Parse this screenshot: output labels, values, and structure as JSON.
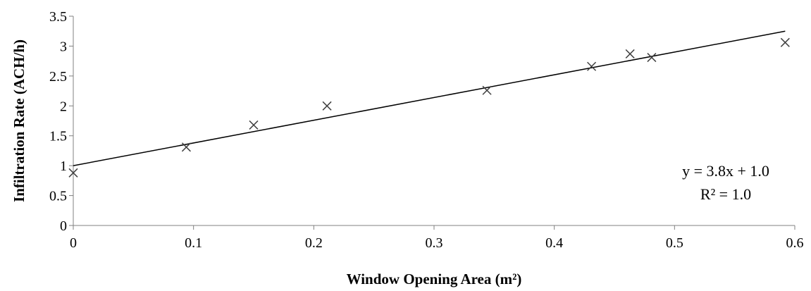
{
  "chart_data": {
    "type": "scatter",
    "title": "",
    "xlabel": "Window Opening Area (m²)",
    "ylabel": "Infiltration Rate (ACH/h)",
    "xlim": [
      0,
      0.6
    ],
    "ylim": [
      0,
      3.5
    ],
    "x_ticks": [
      "0",
      "0.1",
      "0.2",
      "0.3",
      "0.4",
      "0.5",
      "0.6"
    ],
    "y_ticks": [
      "0",
      "0.5",
      "1",
      "1.5",
      "2",
      "2.5",
      "3",
      "3.5"
    ],
    "grid": false,
    "legend": "none",
    "marker": "x",
    "series": [
      {
        "points": [
          {
            "x": 0.0,
            "y": 0.88
          },
          {
            "x": 0.094,
            "y": 1.31
          },
          {
            "x": 0.15,
            "y": 1.68
          },
          {
            "x": 0.211,
            "y": 2.0
          },
          {
            "x": 0.344,
            "y": 2.26
          },
          {
            "x": 0.431,
            "y": 2.66
          },
          {
            "x": 0.463,
            "y": 2.87
          },
          {
            "x": 0.481,
            "y": 2.81
          },
          {
            "x": 0.592,
            "y": 3.06
          }
        ]
      }
    ],
    "trendline": {
      "type": "linear",
      "slope": 3.8,
      "intercept": 1.0,
      "x_range": [
        0,
        0.592
      ]
    },
    "annotations": [
      "y = 3.8x + 1.0",
      "R² = 1.0"
    ],
    "colors": {
      "marker": "#404040",
      "line": "#000000",
      "axis": "#808080"
    }
  }
}
